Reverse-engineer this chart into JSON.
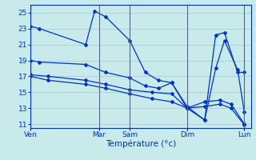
{
  "background_color": "#c8eaea",
  "grid_color": "#a8c8c8",
  "line_color": "#0033cc",
  "vline_color": "#556688",
  "xlabel": "Température (°c)",
  "ylim": [
    10.5,
    26.0
  ],
  "yticks": [
    11,
    13,
    15,
    17,
    19,
    21,
    23,
    25
  ],
  "xlim": [
    0,
    1
  ],
  "day_positions": [
    0.0,
    0.31,
    0.45,
    0.71,
    0.97
  ],
  "day_labels": [
    "Ven",
    "Mar",
    "Sam",
    "Dim",
    "Lun"
  ],
  "line1_x": [
    0.0,
    0.04,
    0.25,
    0.29,
    0.34,
    0.45,
    0.52,
    0.58,
    0.64,
    0.71,
    0.79,
    0.84,
    0.88,
    0.94,
    0.97
  ],
  "line1_y": [
    23.3,
    23.0,
    21.0,
    25.2,
    24.5,
    21.5,
    17.5,
    16.5,
    16.2,
    13.0,
    11.5,
    22.2,
    22.5,
    17.5,
    17.5
  ],
  "line2_x": [
    0.0,
    0.04,
    0.25,
    0.34,
    0.45,
    0.52,
    0.58,
    0.64,
    0.71,
    0.79,
    0.84,
    0.88,
    0.94,
    0.97
  ],
  "line2_y": [
    19.0,
    18.8,
    18.5,
    17.5,
    16.8,
    15.8,
    15.5,
    16.2,
    13.2,
    11.5,
    18.0,
    21.5,
    17.8,
    12.5
  ],
  "line3_x": [
    0.0,
    0.08,
    0.25,
    0.34,
    0.45,
    0.55,
    0.64,
    0.71,
    0.79,
    0.86,
    0.91,
    0.97
  ],
  "line3_y": [
    17.2,
    17.0,
    16.5,
    16.0,
    15.3,
    15.0,
    14.8,
    13.0,
    13.8,
    14.0,
    13.5,
    11.0
  ],
  "line4_x": [
    0.0,
    0.08,
    0.25,
    0.34,
    0.45,
    0.55,
    0.64,
    0.71,
    0.79,
    0.86,
    0.91,
    0.97
  ],
  "line4_y": [
    17.0,
    16.5,
    16.0,
    15.5,
    14.8,
    14.2,
    13.8,
    13.0,
    13.2,
    13.5,
    13.0,
    10.9
  ]
}
